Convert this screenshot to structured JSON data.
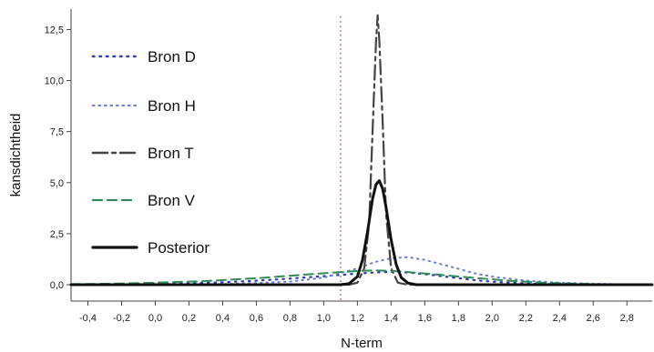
{
  "chart_data": {
    "type": "line",
    "xlabel": "N-term",
    "ylabel": "kansdichtheid",
    "xlim": [
      -0.5,
      2.95
    ],
    "ylim": [
      -0.8,
      13.5
    ],
    "x_ticks": [
      -0.4,
      -0.2,
      0.0,
      0.2,
      0.4,
      0.6,
      0.8,
      1.0,
      1.2,
      1.4,
      1.6,
      1.8,
      2.0,
      2.2,
      2.4,
      2.6,
      2.8
    ],
    "x_tick_labels": [
      "-0,4",
      "-0,2",
      "0,0",
      "0,2",
      "0,4",
      "0,6",
      "0,8",
      "1,0",
      "1,2",
      "1,4",
      "1,6",
      "1,8",
      "2,0",
      "2,2",
      "2,4",
      "2,6",
      "2,8"
    ],
    "y_ticks": [
      0.0,
      2.5,
      5.0,
      7.5,
      10.0,
      12.5
    ],
    "y_tick_labels": [
      "0,0",
      "2,5",
      "5,0",
      "7,5",
      "10,0",
      "12,5"
    ],
    "reference_line": {
      "x": 1.1,
      "color": "#e07a5f"
    },
    "series": [
      {
        "name": "Bron D",
        "color": "#2b3fb0",
        "dash": "1.5 6",
        "width": 2.2,
        "x": [
          -0.5,
          -0.2,
          0.0,
          0.2,
          0.4,
          0.6,
          0.8,
          1.0,
          1.1,
          1.2,
          1.3,
          1.4,
          1.5,
          1.6,
          1.7,
          1.8,
          1.9,
          2.0,
          2.2,
          2.4,
          2.6,
          2.8,
          2.95
        ],
        "values": [
          0.01,
          0.02,
          0.04,
          0.07,
          0.12,
          0.2,
          0.3,
          0.42,
          0.48,
          0.55,
          0.6,
          0.63,
          0.6,
          0.52,
          0.42,
          0.32,
          0.22,
          0.15,
          0.06,
          0.02,
          0.01,
          0.0,
          0.0
        ]
      },
      {
        "name": "Bron H",
        "color": "#6a7fd6",
        "dash": "1.5 5",
        "width": 2,
        "x": [
          -0.5,
          0.0,
          0.4,
          0.8,
          1.0,
          1.2,
          1.3,
          1.4,
          1.5,
          1.6,
          1.7,
          1.8,
          1.9,
          2.0,
          2.2,
          2.4,
          2.6,
          2.8,
          2.95
        ],
        "values": [
          0.0,
          0.01,
          0.03,
          0.15,
          0.35,
          0.8,
          1.1,
          1.3,
          1.35,
          1.22,
          1.0,
          0.78,
          0.55,
          0.4,
          0.2,
          0.1,
          0.05,
          0.02,
          0.01
        ]
      },
      {
        "name": "Bron T",
        "color": "#444444",
        "dash": "16 5 4 5",
        "width": 2.2,
        "x": [
          -0.5,
          1.15,
          1.2,
          1.24,
          1.27,
          1.29,
          1.31,
          1.32,
          1.33,
          1.35,
          1.37,
          1.4,
          1.44,
          1.5,
          2.95
        ],
        "values": [
          0.0,
          0.0,
          0.1,
          0.8,
          3.0,
          7.5,
          11.8,
          13.2,
          12.0,
          8.0,
          3.5,
          0.8,
          0.1,
          0.0,
          0.0
        ]
      },
      {
        "name": "Bron V",
        "color": "#2e8b57",
        "dash": "10 6",
        "width": 2,
        "x": [
          -0.5,
          -0.2,
          0.0,
          0.3,
          0.6,
          0.9,
          1.1,
          1.2,
          1.3,
          1.4,
          1.5,
          1.7,
          1.9,
          2.1,
          2.3,
          2.6,
          2.95
        ],
        "values": [
          0.03,
          0.06,
          0.1,
          0.18,
          0.32,
          0.5,
          0.62,
          0.67,
          0.7,
          0.68,
          0.62,
          0.48,
          0.33,
          0.2,
          0.1,
          0.03,
          0.01
        ]
      },
      {
        "name": "Posterior",
        "color": "#111111",
        "dash": "",
        "width": 3,
        "x": [
          -0.5,
          1.1,
          1.15,
          1.2,
          1.23,
          1.26,
          1.29,
          1.31,
          1.33,
          1.35,
          1.37,
          1.4,
          1.43,
          1.46,
          1.5,
          1.55,
          2.95
        ],
        "values": [
          0.0,
          0.0,
          0.05,
          0.4,
          1.2,
          2.6,
          4.2,
          4.9,
          5.1,
          4.7,
          3.8,
          2.2,
          1.0,
          0.35,
          0.08,
          0.0,
          0.0
        ]
      }
    ]
  }
}
